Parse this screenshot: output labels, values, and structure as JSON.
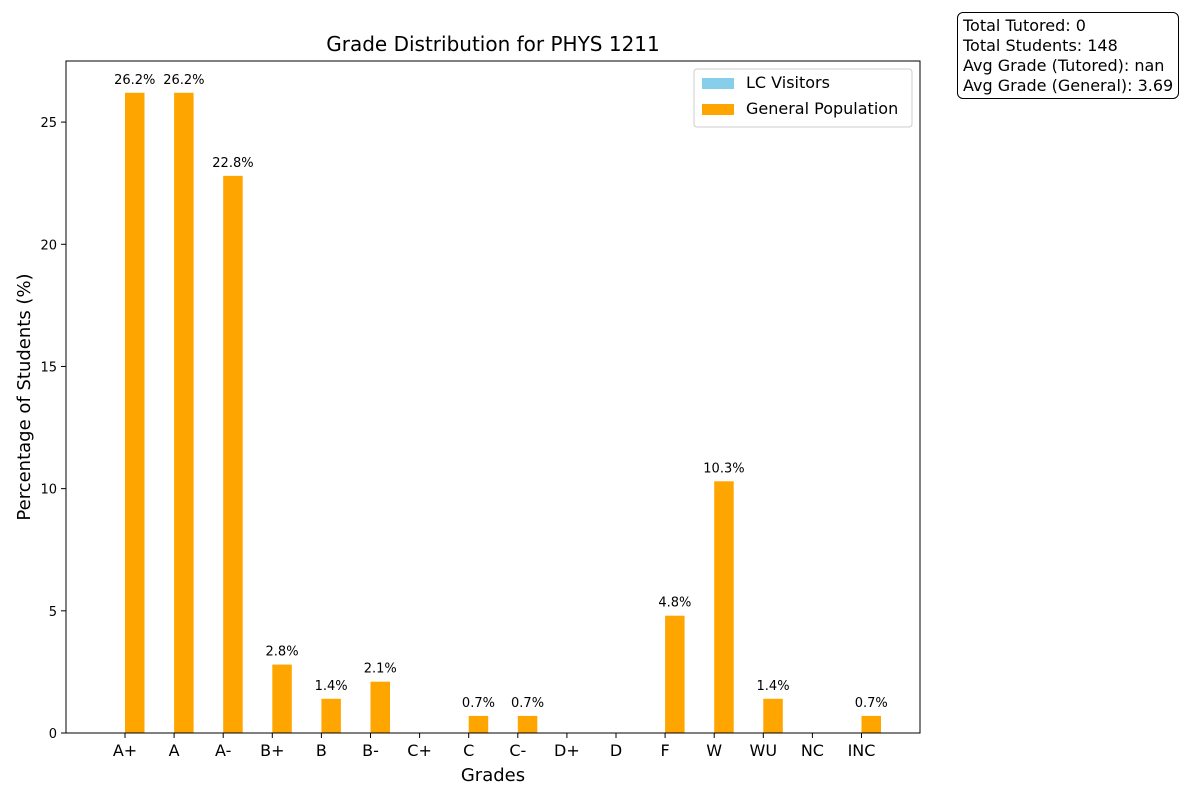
{
  "chart_data": {
    "type": "bar",
    "title": "Grade Distribution for PHYS 1211",
    "xlabel": "Grades",
    "ylabel": "Percentage of Students (%)",
    "ylim": [
      0,
      27.5
    ],
    "yticks": [
      0,
      5,
      10,
      15,
      20,
      25
    ],
    "grid": false,
    "legend_position": "top-right",
    "categories": [
      "A+",
      "A",
      "A-",
      "B+",
      "B",
      "B-",
      "C+",
      "C",
      "C-",
      "D+",
      "D",
      "F",
      "W",
      "WU",
      "NC",
      "INC"
    ],
    "series": [
      {
        "name": "LC Visitors",
        "color": "#87CEEB",
        "values": [
          0,
          0,
          0,
          0,
          0,
          0,
          0,
          0,
          0,
          0,
          0,
          0,
          0,
          0,
          0,
          0
        ],
        "labels": [
          "",
          "",
          "",
          "",
          "",
          "",
          "",
          "",
          "",
          "",
          "",
          "",
          "",
          "",
          "",
          ""
        ]
      },
      {
        "name": "General Population",
        "color": "#FFA500",
        "values": [
          26.2,
          26.2,
          22.8,
          2.8,
          1.4,
          2.1,
          0,
          0.7,
          0.7,
          0,
          0,
          4.8,
          10.3,
          1.4,
          0,
          0.7
        ],
        "labels": [
          "26.2%",
          "26.2%",
          "22.8%",
          "2.8%",
          "1.4%",
          "2.1%",
          "",
          "0.7%",
          "0.7%",
          "",
          "",
          "4.8%",
          "10.3%",
          "1.4%",
          "",
          "0.7%"
        ]
      }
    ]
  },
  "stats": {
    "line1": "Total Tutored: 0",
    "line2": "Total Students: 148",
    "line3": "Avg Grade (Tutored): nan",
    "line4": "Avg Grade (General): 3.69"
  }
}
